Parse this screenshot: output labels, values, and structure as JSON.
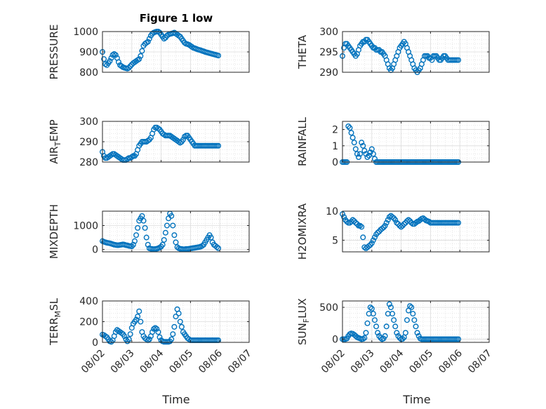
{
  "figure": {
    "title": "Figure 1 low",
    "marker_color": "#0072BD",
    "x_tick_labels": [
      "08/02",
      "08/03",
      "08/04",
      "08/05",
      "08/06",
      "08/07"
    ],
    "xlabel": "Time"
  },
  "chart_data": [
    {
      "type": "scatter",
      "ylabel": "PRESSURE",
      "xlim": [
        0,
        5
      ],
      "ylim": [
        800,
        1000
      ],
      "yticks": [
        800,
        900,
        1000
      ],
      "x": [
        0.0,
        0.05,
        0.1,
        0.15,
        0.2,
        0.25,
        0.3,
        0.35,
        0.4,
        0.45,
        0.5,
        0.55,
        0.6,
        0.65,
        0.7,
        0.75,
        0.8,
        0.85,
        0.9,
        0.95,
        1.0,
        1.05,
        1.1,
        1.15,
        1.2,
        1.25,
        1.3,
        1.35,
        1.4,
        1.45,
        1.5,
        1.55,
        1.6,
        1.65,
        1.7,
        1.75,
        1.8,
        1.85,
        1.9,
        1.95,
        2.0,
        2.05,
        2.1,
        2.15,
        2.2,
        2.25,
        2.3,
        2.35,
        2.4,
        2.45,
        2.5,
        2.55,
        2.6,
        2.65,
        2.7,
        2.75,
        2.8,
        2.85,
        2.9,
        2.95,
        3.0,
        3.05,
        3.1,
        3.15,
        3.2,
        3.25,
        3.3,
        3.35,
        3.4,
        3.45,
        3.5,
        3.55,
        3.6,
        3.65,
        3.7,
        3.75,
        3.8,
        3.85,
        3.9,
        3.95
      ],
      "values": [
        900,
        865,
        840,
        835,
        845,
        855,
        870,
        885,
        890,
        885,
        870,
        850,
        835,
        830,
        825,
        822,
        820,
        818,
        822,
        830,
        838,
        845,
        850,
        855,
        860,
        865,
        880,
        905,
        930,
        940,
        945,
        950,
        965,
        980,
        990,
        995,
        998,
        1000,
        1000,
        995,
        985,
        975,
        965,
        970,
        980,
        985,
        988,
        990,
        992,
        995,
        990,
        985,
        980,
        975,
        965,
        955,
        945,
        940,
        938,
        935,
        930,
        925,
        920,
        918,
        915,
        912,
        910,
        908,
        905,
        903,
        900,
        898,
        896,
        894,
        892,
        890,
        888,
        886,
        884,
        882
      ]
    },
    {
      "type": "scatter",
      "ylabel": "THETA",
      "xlim": [
        0,
        5
      ],
      "ylim": [
        290,
        300
      ],
      "yticks": [
        290,
        295,
        300
      ],
      "x": [
        0.0,
        0.05,
        0.1,
        0.15,
        0.2,
        0.25,
        0.3,
        0.35,
        0.4,
        0.45,
        0.5,
        0.55,
        0.6,
        0.65,
        0.7,
        0.75,
        0.8,
        0.85,
        0.9,
        0.95,
        1.0,
        1.05,
        1.1,
        1.15,
        1.2,
        1.25,
        1.3,
        1.35,
        1.4,
        1.45,
        1.5,
        1.55,
        1.6,
        1.65,
        1.7,
        1.75,
        1.8,
        1.85,
        1.9,
        1.95,
        2.0,
        2.05,
        2.1,
        2.15,
        2.2,
        2.25,
        2.3,
        2.35,
        2.4,
        2.45,
        2.5,
        2.55,
        2.6,
        2.65,
        2.7,
        2.75,
        2.8,
        2.85,
        2.9,
        2.95,
        3.0,
        3.05,
        3.1,
        3.15,
        3.2,
        3.25,
        3.3,
        3.35,
        3.4,
        3.45,
        3.5,
        3.55,
        3.6,
        3.65,
        3.7,
        3.75,
        3.8,
        3.85,
        3.9,
        3.95
      ],
      "values": [
        294,
        296,
        297,
        297,
        296.5,
        296,
        295.5,
        295,
        294.5,
        294,
        294.5,
        295.5,
        296.5,
        297,
        297.5,
        297.5,
        298,
        298,
        297.5,
        297,
        296.5,
        296,
        296,
        295.5,
        295.5,
        295.5,
        295,
        295,
        294.5,
        294,
        293,
        292,
        291,
        290.5,
        291,
        292,
        293,
        294,
        295,
        296,
        296.5,
        297,
        297.5,
        297,
        296,
        295,
        294,
        293,
        292,
        291,
        290.5,
        290,
        290.5,
        291,
        292,
        293,
        294,
        294,
        294,
        293.5,
        293.5,
        293,
        294,
        294,
        294,
        293.5,
        293,
        293,
        293.5,
        294,
        294,
        293.5,
        293,
        293,
        293,
        293,
        293,
        293,
        293,
        293
      ]
    },
    {
      "type": "scatter",
      "ylabel": "AIR_TEMP",
      "xlim": [
        0,
        5
      ],
      "ylim": [
        280,
        300
      ],
      "yticks": [
        280,
        290,
        300
      ],
      "x": [
        0.0,
        0.05,
        0.1,
        0.15,
        0.2,
        0.25,
        0.3,
        0.35,
        0.4,
        0.45,
        0.5,
        0.55,
        0.6,
        0.65,
        0.7,
        0.75,
        0.8,
        0.85,
        0.9,
        0.95,
        1.0,
        1.05,
        1.1,
        1.15,
        1.2,
        1.25,
        1.3,
        1.35,
        1.4,
        1.45,
        1.5,
        1.55,
        1.6,
        1.65,
        1.7,
        1.75,
        1.8,
        1.85,
        1.9,
        1.95,
        2.0,
        2.05,
        2.1,
        2.15,
        2.2,
        2.25,
        2.3,
        2.35,
        2.4,
        2.45,
        2.5,
        2.55,
        2.6,
        2.65,
        2.7,
        2.75,
        2.8,
        2.85,
        2.9,
        2.95,
        3.0,
        3.05,
        3.1,
        3.15,
        3.2,
        3.25,
        3.3,
        3.35,
        3.4,
        3.45,
        3.5,
        3.55,
        3.6,
        3.65,
        3.7,
        3.75,
        3.8,
        3.85,
        3.9,
        3.95
      ],
      "values": [
        285,
        283,
        282,
        282,
        282.5,
        283,
        283.5,
        284,
        284,
        283.5,
        283,
        282.5,
        282,
        281.5,
        281,
        281,
        281,
        281.5,
        282,
        282,
        282.5,
        283,
        283,
        284,
        286,
        288,
        289,
        290,
        290,
        290,
        290,
        290.5,
        291,
        292,
        294,
        296,
        297,
        297,
        296.5,
        296,
        295,
        294,
        293.5,
        293,
        293,
        293,
        293,
        292.5,
        292,
        291.5,
        291,
        290.5,
        290,
        289.5,
        290,
        291,
        292.5,
        293,
        293,
        292,
        291,
        290,
        289,
        288,
        288,
        288,
        288,
        288,
        288,
        288,
        288,
        288,
        288,
        288,
        288,
        288,
        288,
        288,
        288,
        288
      ]
    },
    {
      "type": "scatter",
      "ylabel": "RAINFALL",
      "xlim": [
        0,
        5
      ],
      "ylim": [
        0,
        2.5
      ],
      "yticks": [
        0,
        1,
        2
      ],
      "x": [
        0.0,
        0.05,
        0.1,
        0.15,
        0.2,
        0.25,
        0.3,
        0.35,
        0.4,
        0.45,
        0.5,
        0.55,
        0.6,
        0.65,
        0.7,
        0.75,
        0.8,
        0.85,
        0.9,
        0.95,
        1.0,
        1.05,
        1.1,
        1.15,
        1.2,
        1.25,
        1.3,
        1.35,
        1.4,
        1.45,
        1.5,
        1.55,
        1.6,
        1.65,
        1.7,
        1.75,
        1.8,
        1.85,
        1.9,
        1.95,
        2.0,
        2.05,
        2.1,
        2.15,
        2.2,
        2.25,
        2.3,
        2.35,
        2.4,
        2.45,
        2.5,
        2.55,
        2.6,
        2.65,
        2.7,
        2.75,
        2.8,
        2.85,
        2.9,
        2.95,
        3.0,
        3.05,
        3.1,
        3.15,
        3.2,
        3.25,
        3.3,
        3.35,
        3.4,
        3.45,
        3.5,
        3.55,
        3.6,
        3.65,
        3.7,
        3.75,
        3.8,
        3.85,
        3.9,
        3.95
      ],
      "values": [
        0,
        0,
        0,
        0,
        2.2,
        2.1,
        1.8,
        1.5,
        1.2,
        0.8,
        0.5,
        0.3,
        0.5,
        1.2,
        1.0,
        0.7,
        0.5,
        0.3,
        0.4,
        0.6,
        0.8,
        0.5,
        0.2,
        0.0,
        0.0,
        0.0,
        0.0,
        0.0,
        0.0,
        0.0,
        0.0,
        0.0,
        0.0,
        0.0,
        0.0,
        0.0,
        0.0,
        0.0,
        0.0,
        0.0,
        0.0,
        0.0,
        0.0,
        0.0,
        0.0,
        0.0,
        0.0,
        0.0,
        0.0,
        0.0,
        0.0,
        0.0,
        0.0,
        0.0,
        0.0,
        0.0,
        0.0,
        0.0,
        0.0,
        0.0,
        0.0,
        0.0,
        0.0,
        0.0,
        0.0,
        0.0,
        0.0,
        0.0,
        0.0,
        0.0,
        0.0,
        0.0,
        0.0,
        0.0,
        0.0,
        0.0,
        0.0,
        0.0,
        0.0,
        0.0
      ]
    },
    {
      "type": "scatter",
      "ylabel": "MIXDEPTH",
      "xlim": [
        0,
        5
      ],
      "ylim": [
        -100,
        1600
      ],
      "yticks": [
        0,
        1000
      ],
      "x": [
        0.0,
        0.05,
        0.1,
        0.15,
        0.2,
        0.25,
        0.3,
        0.35,
        0.4,
        0.45,
        0.5,
        0.55,
        0.6,
        0.65,
        0.7,
        0.75,
        0.8,
        0.85,
        0.9,
        0.95,
        1.0,
        1.05,
        1.1,
        1.15,
        1.2,
        1.25,
        1.3,
        1.35,
        1.4,
        1.45,
        1.5,
        1.55,
        1.6,
        1.65,
        1.7,
        1.75,
        1.8,
        1.85,
        1.9,
        1.95,
        2.0,
        2.05,
        2.1,
        2.15,
        2.2,
        2.25,
        2.3,
        2.35,
        2.4,
        2.45,
        2.5,
        2.55,
        2.6,
        2.65,
        2.7,
        2.75,
        2.8,
        2.85,
        2.9,
        2.95,
        3.0,
        3.05,
        3.1,
        3.15,
        3.2,
        3.25,
        3.3,
        3.35,
        3.4,
        3.45,
        3.5,
        3.55,
        3.6,
        3.65,
        3.7,
        3.75,
        3.8,
        3.85,
        3.9,
        3.95
      ],
      "values": [
        350,
        320,
        300,
        280,
        270,
        260,
        240,
        220,
        200,
        190,
        180,
        180,
        190,
        200,
        210,
        200,
        180,
        170,
        150,
        140,
        130,
        200,
        350,
        600,
        900,
        1200,
        1300,
        1400,
        1200,
        900,
        500,
        200,
        50,
        30,
        20,
        10,
        20,
        30,
        50,
        80,
        120,
        200,
        400,
        700,
        1000,
        1300,
        1500,
        1400,
        1000,
        600,
        300,
        100,
        50,
        30,
        20,
        10,
        10,
        20,
        20,
        30,
        40,
        50,
        60,
        70,
        80,
        90,
        100,
        120,
        150,
        200,
        300,
        400,
        500,
        600,
        500,
        300,
        200,
        150,
        100,
        50
      ]
    },
    {
      "type": "scatter",
      "ylabel": "H2OMIXRA",
      "xlim": [
        0,
        5
      ],
      "ylim": [
        3,
        10
      ],
      "yticks": [
        5,
        10
      ],
      "x": [
        0.0,
        0.05,
        0.1,
        0.15,
        0.2,
        0.25,
        0.3,
        0.35,
        0.4,
        0.45,
        0.5,
        0.55,
        0.6,
        0.65,
        0.7,
        0.75,
        0.8,
        0.85,
        0.9,
        0.95,
        1.0,
        1.05,
        1.1,
        1.15,
        1.2,
        1.25,
        1.3,
        1.35,
        1.4,
        1.45,
        1.5,
        1.55,
        1.6,
        1.65,
        1.7,
        1.75,
        1.8,
        1.85,
        1.9,
        1.95,
        2.0,
        2.05,
        2.1,
        2.15,
        2.2,
        2.25,
        2.3,
        2.35,
        2.4,
        2.45,
        2.5,
        2.55,
        2.6,
        2.65,
        2.7,
        2.75,
        2.8,
        2.85,
        2.9,
        2.95,
        3.0,
        3.05,
        3.1,
        3.15,
        3.2,
        3.25,
        3.3,
        3.35,
        3.4,
        3.45,
        3.5,
        3.55,
        3.6,
        3.65,
        3.7,
        3.75,
        3.8,
        3.85,
        3.9,
        3.95
      ],
      "values": [
        9.5,
        9.0,
        8.5,
        8.2,
        8.0,
        8.0,
        8.2,
        8.5,
        8.3,
        8.0,
        7.8,
        7.5,
        7.5,
        7.3,
        5.5,
        3.8,
        3.6,
        3.8,
        4.0,
        4.2,
        4.5,
        5.0,
        5.5,
        6.0,
        6.3,
        6.5,
        6.8,
        7.0,
        7.2,
        7.5,
        8.0,
        8.5,
        9.0,
        9.2,
        9.0,
        8.8,
        8.5,
        8.0,
        7.8,
        7.5,
        7.3,
        7.5,
        7.8,
        8.0,
        8.3,
        8.5,
        8.3,
        8.0,
        7.8,
        7.8,
        8.0,
        8.2,
        8.3,
        8.5,
        8.7,
        8.8,
        8.6,
        8.4,
        8.3,
        8.2,
        8.0,
        8.0,
        8.0,
        8.0,
        8.0,
        8.0,
        8.0,
        8.0,
        8.0,
        8.0,
        8.0,
        8.0,
        8.0,
        8.0,
        8.0,
        8.0,
        8.0,
        8.0,
        8.0,
        8.0
      ]
    },
    {
      "type": "scatter",
      "ylabel": "TERR_MSL",
      "xlim": [
        0,
        5
      ],
      "ylim": [
        0,
        400
      ],
      "yticks": [
        0,
        200,
        400
      ],
      "x": [
        0.0,
        0.05,
        0.1,
        0.15,
        0.2,
        0.25,
        0.3,
        0.35,
        0.4,
        0.45,
        0.5,
        0.55,
        0.6,
        0.65,
        0.7,
        0.75,
        0.8,
        0.85,
        0.9,
        0.95,
        1.0,
        1.05,
        1.1,
        1.15,
        1.2,
        1.25,
        1.3,
        1.35,
        1.4,
        1.45,
        1.5,
        1.55,
        1.6,
        1.65,
        1.7,
        1.75,
        1.8,
        1.85,
        1.9,
        1.95,
        2.0,
        2.05,
        2.1,
        2.15,
        2.2,
        2.25,
        2.3,
        2.35,
        2.4,
        2.45,
        2.5,
        2.55,
        2.6,
        2.65,
        2.7,
        2.75,
        2.8,
        2.85,
        2.9,
        2.95,
        3.0,
        3.05,
        3.1,
        3.15,
        3.2,
        3.25,
        3.3,
        3.35,
        3.4,
        3.45,
        3.5,
        3.55,
        3.6,
        3.65,
        3.7,
        3.75,
        3.8,
        3.85,
        3.9,
        3.95
      ],
      "values": [
        75,
        70,
        60,
        50,
        30,
        10,
        5,
        20,
        60,
        100,
        120,
        110,
        100,
        90,
        80,
        60,
        30,
        10,
        30,
        80,
        140,
        180,
        200,
        220,
        250,
        300,
        200,
        100,
        60,
        40,
        30,
        20,
        30,
        60,
        100,
        130,
        140,
        130,
        100,
        50,
        20,
        10,
        5,
        5,
        5,
        5,
        10,
        30,
        80,
        150,
        250,
        320,
        280,
        200,
        150,
        100,
        80,
        60,
        40,
        30,
        20,
        20,
        20,
        20,
        20,
        20,
        20,
        20,
        20,
        20,
        20,
        20,
        20,
        20,
        20,
        20,
        20,
        20,
        20,
        20
      ]
    },
    {
      "type": "scatter",
      "ylabel": "SUN_FLUX",
      "xlim": [
        0,
        5
      ],
      "ylim": [
        -50,
        600
      ],
      "yticks": [
        0,
        500
      ],
      "x": [
        0.0,
        0.05,
        0.1,
        0.15,
        0.2,
        0.25,
        0.3,
        0.35,
        0.4,
        0.45,
        0.5,
        0.55,
        0.6,
        0.65,
        0.7,
        0.75,
        0.8,
        0.85,
        0.9,
        0.95,
        1.0,
        1.05,
        1.1,
        1.15,
        1.2,
        1.25,
        1.3,
        1.35,
        1.4,
        1.45,
        1.5,
        1.55,
        1.6,
        1.65,
        1.7,
        1.75,
        1.8,
        1.85,
        1.9,
        1.95,
        2.0,
        2.05,
        2.1,
        2.15,
        2.2,
        2.25,
        2.3,
        2.35,
        2.4,
        2.45,
        2.5,
        2.55,
        2.6,
        2.65,
        2.7,
        2.75,
        2.8,
        2.85,
        2.9,
        2.95,
        3.0,
        3.05,
        3.1,
        3.15,
        3.2,
        3.25,
        3.3,
        3.35,
        3.4,
        3.45,
        3.5,
        3.55,
        3.6,
        3.65,
        3.7,
        3.75,
        3.8,
        3.85,
        3.9,
        3.95
      ],
      "values": [
        0,
        0,
        0,
        10,
        50,
        80,
        90,
        85,
        70,
        50,
        30,
        20,
        10,
        0,
        5,
        20,
        100,
        250,
        400,
        500,
        480,
        400,
        300,
        200,
        100,
        50,
        20,
        0,
        10,
        50,
        200,
        400,
        550,
        500,
        400,
        300,
        200,
        100,
        50,
        20,
        0,
        5,
        30,
        100,
        300,
        450,
        520,
        500,
        400,
        300,
        200,
        100,
        50,
        10,
        0,
        0,
        0,
        0,
        0,
        0,
        0,
        0,
        0,
        0,
        0,
        0,
        0,
        0,
        0,
        0,
        0,
        0,
        0,
        0,
        0,
        0,
        0,
        0,
        0,
        0
      ]
    }
  ]
}
